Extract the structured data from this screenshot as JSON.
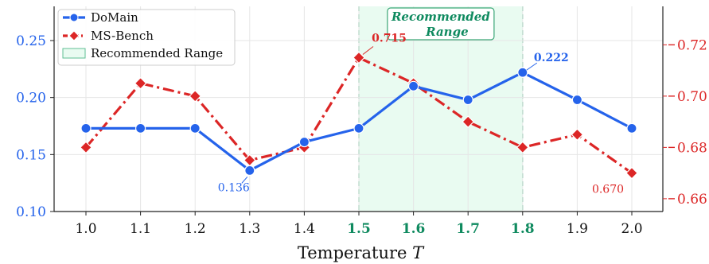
{
  "chart_data": {
    "type": "line",
    "xlabel_prefix": "Temperature ",
    "xlabel_var": "T",
    "x": [
      1.0,
      1.1,
      1.2,
      1.3,
      1.4,
      1.5,
      1.6,
      1.7,
      1.8,
      1.9,
      2.0
    ],
    "x_tick_labels": [
      "1.0",
      "1.1",
      "1.2",
      "1.3",
      "1.4",
      "1.5",
      "1.6",
      "1.7",
      "1.8",
      "1.9",
      "2.0"
    ],
    "highlighted_x_ticks": [
      "1.5",
      "1.6",
      "1.7",
      "1.8"
    ],
    "series": [
      {
        "name": "DoMain",
        "axis": "left",
        "color": "#2563eb",
        "marker": "circle",
        "line_style": "solid",
        "values": [
          0.173,
          0.173,
          0.173,
          0.136,
          0.161,
          0.173,
          0.21,
          0.198,
          0.222,
          0.198,
          0.173
        ]
      },
      {
        "name": "MS-Bench",
        "axis": "right",
        "color": "#dc2626",
        "marker": "diamond",
        "line_style": "dash-dot",
        "values": [
          0.68,
          0.705,
          0.7,
          0.675,
          0.68,
          0.715,
          0.705,
          0.69,
          0.68,
          0.685,
          0.67
        ]
      }
    ],
    "left_axis": {
      "ylim": [
        0.1,
        0.28
      ],
      "ticks": [
        "0.10",
        "0.15",
        "0.20",
        "0.25"
      ],
      "color": "#2563eb"
    },
    "right_axis": {
      "ylim": [
        0.655,
        0.735
      ],
      "ticks": [
        "0.66",
        "0.68",
        "0.70",
        "0.72"
      ],
      "color": "#dc2626"
    },
    "recommended_range": {
      "x_start": 1.5,
      "x_end": 1.8,
      "label_line1": "Recommended",
      "label_line2": "Range",
      "color": "#0f8a5f",
      "fill": "#e9fbf1"
    },
    "annotations": [
      {
        "text": "0.136",
        "series": "DoMain",
        "x": 1.3,
        "bold": false
      },
      {
        "text": "0.222",
        "series": "DoMain",
        "x": 1.8,
        "bold": true
      },
      {
        "text": "0.715",
        "series": "MS-Bench",
        "x": 1.5,
        "bold": true
      },
      {
        "text": "0.670",
        "series": "MS-Bench",
        "x": 2.0,
        "bold": false
      }
    ],
    "legend": {
      "placement": "top-left",
      "entries": [
        "DoMain",
        "MS-Bench",
        "Recommended Range"
      ]
    },
    "grid": true
  }
}
